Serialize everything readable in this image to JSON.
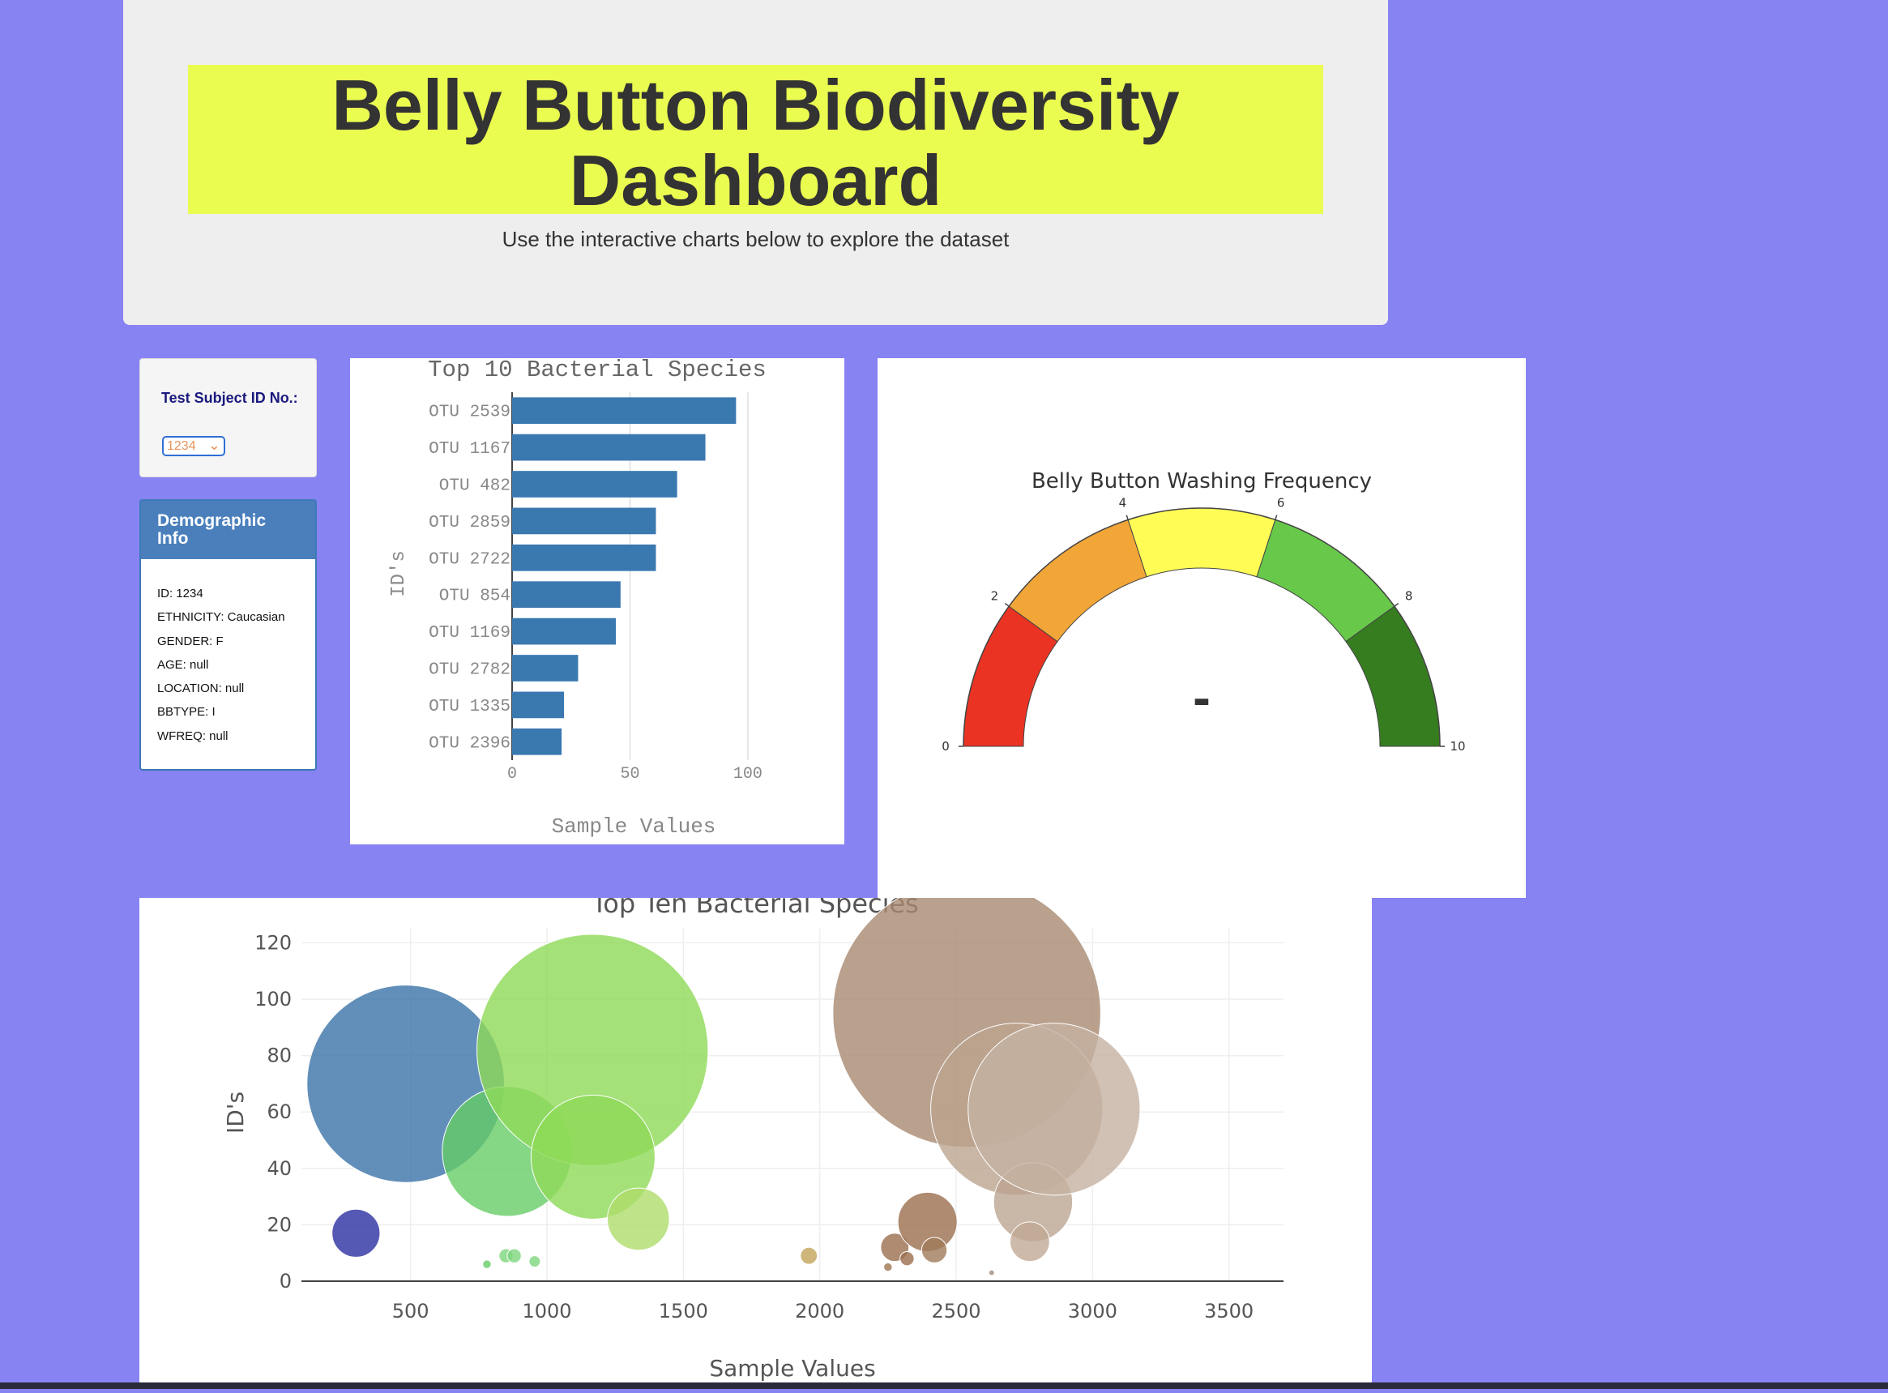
{
  "header": {
    "title": "Belly Button Biodiversity Dashboard",
    "subtitle": "Use the interactive charts below to explore the dataset"
  },
  "selector": {
    "label": "Test Subject ID No.:",
    "selected": "1234"
  },
  "demographics": {
    "title": "Demographic Info",
    "lines": [
      "ID: 1234",
      "ETHNICITY: Caucasian",
      "GENDER: F",
      "AGE: null",
      "LOCATION: null",
      "BBTYPE: I",
      "WFREQ: null"
    ]
  },
  "chart_data": [
    {
      "type": "bar",
      "orientation": "horizontal",
      "title": "Top 10 Bacterial Species",
      "xlabel": "Sample Values",
      "ylabel": "ID's",
      "categories": [
        "OTU 2539",
        "OTU 1167",
        "OTU 482",
        "OTU 2859",
        "OTU 2722",
        "OTU 854",
        "OTU 1169",
        "OTU 2782",
        "OTU 1335",
        "OTU 2396"
      ],
      "values": [
        95,
        82,
        70,
        61,
        61,
        46,
        44,
        28,
        22,
        21
      ],
      "xticks": [
        0,
        50,
        100
      ],
      "xlim": [
        0,
        110
      ],
      "color": "#3a78b0"
    },
    {
      "type": "gauge",
      "title": "Belly Button Washing Frequency",
      "range": [
        0,
        10
      ],
      "ticks": [
        0,
        2,
        4,
        6,
        8,
        10
      ],
      "value_text": "-",
      "bands": [
        {
          "from": 0,
          "to": 2,
          "color": "#ea3323"
        },
        {
          "from": 2,
          "to": 4,
          "color": "#f2a638"
        },
        {
          "from": 4,
          "to": 6,
          "color": "#fffd55"
        },
        {
          "from": 6,
          "to": 8,
          "color": "#67c84a"
        },
        {
          "from": 8,
          "to": 10,
          "color": "#367d20"
        }
      ]
    },
    {
      "type": "scatter",
      "subtype": "bubble",
      "title": "Top Ten Bacterial Species",
      "xlabel": "Sample Values",
      "ylabel": "ID's",
      "xlim": [
        100,
        3700
      ],
      "ylim": [
        0,
        125
      ],
      "xticks": [
        500,
        1000,
        1500,
        2000,
        2500,
        3000,
        3500
      ],
      "yticks": [
        0,
        20,
        40,
        60,
        80,
        100,
        120
      ],
      "grid": true,
      "points": [
        {
          "x": 300,
          "y": 17,
          "size": 17,
          "color": "#2a2fa0"
        },
        {
          "x": 482,
          "y": 70,
          "size": 70,
          "color": "#3a73a8"
        },
        {
          "x": 854,
          "y": 46,
          "size": 46,
          "color": "#66cc66"
        },
        {
          "x": 1167,
          "y": 82,
          "size": 82,
          "color": "#8fd957"
        },
        {
          "x": 1169,
          "y": 44,
          "size": 44,
          "color": "#8fd957"
        },
        {
          "x": 1335,
          "y": 22,
          "size": 22,
          "color": "#aedc6a"
        },
        {
          "x": 780,
          "y": 6,
          "size": 3,
          "color": "#66cc66"
        },
        {
          "x": 850,
          "y": 9,
          "size": 5,
          "color": "#7dd67d"
        },
        {
          "x": 880,
          "y": 9,
          "size": 5,
          "color": "#7dd67d"
        },
        {
          "x": 955,
          "y": 7,
          "size": 4,
          "color": "#7dd67d"
        },
        {
          "x": 1960,
          "y": 9,
          "size": 6,
          "color": "#c2a45a"
        },
        {
          "x": 2250,
          "y": 5,
          "size": 3,
          "color": "#a07650"
        },
        {
          "x": 2275,
          "y": 12,
          "size": 10,
          "color": "#9a6e4e"
        },
        {
          "x": 2320,
          "y": 8,
          "size": 5,
          "color": "#9a6e4e"
        },
        {
          "x": 2395,
          "y": 21,
          "size": 21,
          "color": "#9a6e4e"
        },
        {
          "x": 2420,
          "y": 11,
          "size": 9,
          "color": "#a07a5a"
        },
        {
          "x": 2539,
          "y": 95,
          "size": 95,
          "color": "#a88a72"
        },
        {
          "x": 2722,
          "y": 61,
          "size": 61,
          "color": "#bba48f"
        },
        {
          "x": 2782,
          "y": 28,
          "size": 28,
          "color": "#bca591"
        },
        {
          "x": 2770,
          "y": 14,
          "size": 14,
          "color": "#c0a995"
        },
        {
          "x": 2859,
          "y": 61,
          "size": 61,
          "color": "#c6b2a1"
        },
        {
          "x": 2630,
          "y": 3,
          "size": 2,
          "color": "#a08a7a"
        }
      ]
    }
  ]
}
